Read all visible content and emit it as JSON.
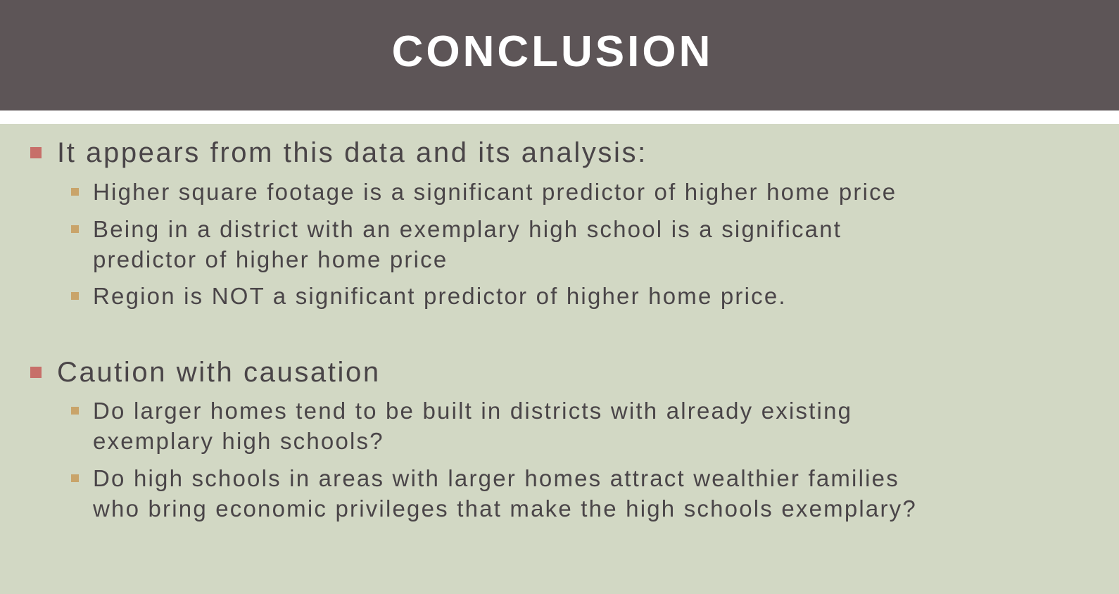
{
  "slide": {
    "title": "CONCLUSION",
    "colors": {
      "title_bar": "#5d5557",
      "background": "#d2d8c4",
      "level1_bullet": "#c76f69",
      "level2_bullet": "#c9a46a",
      "text": "#4a4548"
    },
    "sections": [
      {
        "heading": "It appears from this data and its analysis:",
        "items": [
          {
            "lines": [
              "Higher square footage is a significant predictor of higher home price"
            ]
          },
          {
            "lines": [
              "Being in a district with an exemplary high school is a significant",
              "predictor of higher home price"
            ]
          },
          {
            "lines": [
              "Region is NOT a significant predictor of higher home price."
            ]
          }
        ]
      },
      {
        "heading": "Caution with causation",
        "items": [
          {
            "lines": [
              "Do larger homes tend to be built in districts with already existing",
              "exemplary high schools?"
            ]
          },
          {
            "lines": [
              "Do high schools in areas with larger homes attract wealthier families",
              "who bring economic privileges that make the high schools exemplary?"
            ]
          }
        ]
      }
    ]
  }
}
